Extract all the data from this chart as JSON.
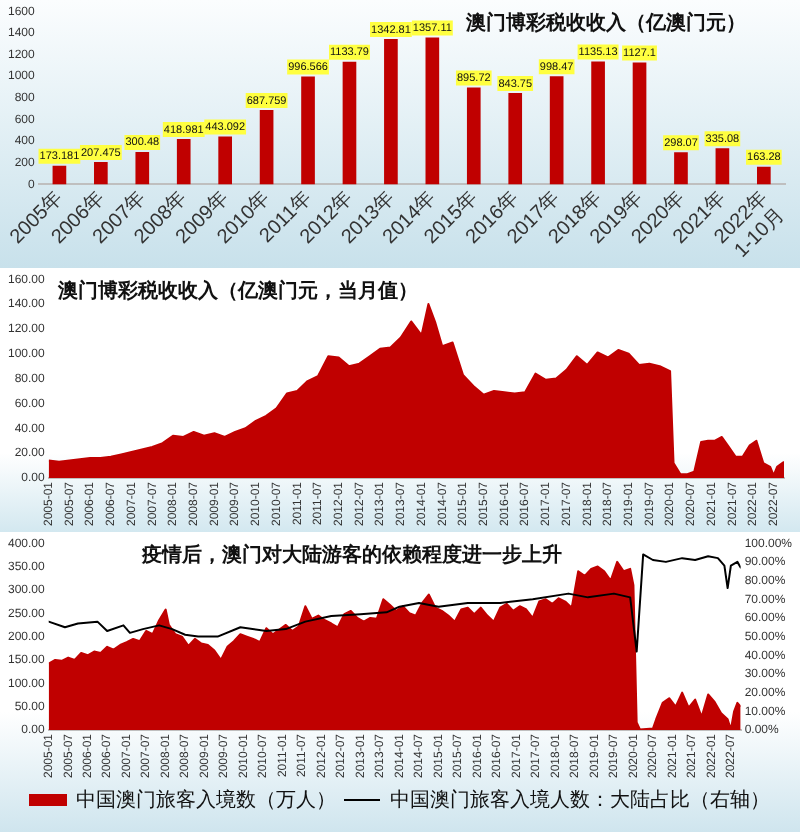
{
  "chart_data": [
    {
      "type": "bar",
      "title": "澳门博彩税收收入（亿澳门元）",
      "categories": [
        "2005年",
        "2006年",
        "2007年",
        "2008年",
        "2009年",
        "2010年",
        "2011年",
        "2012年",
        "2013年",
        "2014年",
        "2015年",
        "2016年",
        "2017年",
        "2018年",
        "2019年",
        "2020年",
        "2021年",
        "2022年1-10月"
      ],
      "values": [
        173.181,
        207.475,
        300.48,
        418.981,
        443.092,
        687.759,
        996.566,
        1133.79,
        1342.81,
        1357.11,
        895.72,
        843.75,
        998.47,
        1135.13,
        1127.1,
        298.07,
        335.08,
        163.28
      ],
      "color": "#c00000",
      "ylim": [
        0,
        1600
      ],
      "yticks": [
        0,
        200,
        400,
        600,
        800,
        1000,
        1200,
        1400,
        1600
      ],
      "data_labels": true
    },
    {
      "type": "area",
      "title": "澳门博彩税收收入（亿澳门元，当月值）",
      "x": [
        "2005-01",
        "2005-04",
        "2005-07",
        "2005-10",
        "2006-01",
        "2006-04",
        "2006-07",
        "2006-10",
        "2007-01",
        "2007-04",
        "2007-07",
        "2007-10",
        "2008-01",
        "2008-04",
        "2008-07",
        "2008-10",
        "2009-01",
        "2009-04",
        "2009-07",
        "2009-10",
        "2010-01",
        "2010-04",
        "2010-07",
        "2010-10",
        "2011-01",
        "2011-04",
        "2011-07",
        "2011-10",
        "2012-01",
        "2012-04",
        "2012-07",
        "2012-10",
        "2013-01",
        "2013-04",
        "2013-07",
        "2013-10",
        "2014-01",
        "2014-03",
        "2014-05",
        "2014-07",
        "2014-10",
        "2015-01",
        "2015-04",
        "2015-07",
        "2015-10",
        "2016-01",
        "2016-04",
        "2016-07",
        "2016-10",
        "2017-01",
        "2017-04",
        "2017-07",
        "2017-10",
        "2018-01",
        "2018-04",
        "2018-07",
        "2018-10",
        "2019-01",
        "2019-04",
        "2019-07",
        "2019-10",
        "2020-01",
        "2020-02",
        "2020-04",
        "2020-06",
        "2020-08",
        "2020-10",
        "2020-12",
        "2021-02",
        "2021-04",
        "2021-06",
        "2021-08",
        "2021-10",
        "2021-12",
        "2022-02",
        "2022-04",
        "2022-06",
        "2022-07",
        "2022-08",
        "2022-10"
      ],
      "values": [
        14,
        13,
        14,
        15,
        16,
        16,
        17,
        19,
        21,
        23,
        25,
        28,
        34,
        33,
        37,
        34,
        36,
        33,
        37,
        40,
        46,
        50,
        56,
        68,
        70,
        78,
        82,
        98,
        97,
        90,
        92,
        98,
        104,
        105,
        113,
        126,
        115,
        140,
        125,
        106,
        109,
        83,
        74,
        67,
        70,
        69,
        68,
        69,
        84,
        79,
        80,
        87,
        98,
        91,
        101,
        97,
        103,
        100,
        91,
        92,
        90,
        86,
        12,
        3,
        3,
        5,
        29,
        30,
        30,
        33,
        25,
        17,
        17,
        26,
        30,
        12,
        9,
        2,
        9,
        13
      ],
      "color": "#c00000",
      "xlim": [
        "2005-01",
        "2022-10"
      ],
      "xticks": [
        "2005-01",
        "2005-07",
        "2006-01",
        "2006-07",
        "2007-01",
        "2007-07",
        "2008-01",
        "2008-07",
        "2009-01",
        "2009-07",
        "2010-01",
        "2010-07",
        "2011-01",
        "2011-07",
        "2012-01",
        "2012-07",
        "2013-01",
        "2013-07",
        "2014-01",
        "2014-07",
        "2015-01",
        "2015-07",
        "2016-01",
        "2016-07",
        "2017-01",
        "2017-07",
        "2018-01",
        "2018-07",
        "2019-01",
        "2019-07",
        "2020-01",
        "2020-07",
        "2021-01",
        "2021-07",
        "2022-01",
        "2022-07"
      ],
      "ylim": [
        0,
        160
      ],
      "yticks": [
        {
          "value": 0,
          "label": "0.00"
        },
        {
          "value": 20,
          "label": "20.00"
        },
        {
          "value": 40,
          "label": "40.00"
        },
        {
          "value": 60,
          "label": "60.00"
        },
        {
          "value": 80,
          "label": "80.00"
        },
        {
          "value": 100,
          "label": "100.00"
        },
        {
          "value": 120,
          "label": "120.00"
        },
        {
          "value": 140,
          "label": "140.00"
        },
        {
          "value": 160,
          "label": "160.00"
        }
      ]
    },
    {
      "type": "area",
      "title": "疫情后，澳门对大陆游客的依赖程度进一步上升",
      "series": [
        {
          "name": "中国澳门旅客入境数（万人）",
          "color": "#c00000",
          "x": [
            "2005-01",
            "2005-03",
            "2005-05",
            "2005-07",
            "2005-09",
            "2005-11",
            "2006-01",
            "2006-03",
            "2006-05",
            "2006-07",
            "2006-09",
            "2006-11",
            "2007-01",
            "2007-03",
            "2007-05",
            "2007-07",
            "2007-09",
            "2007-11",
            "2008-01",
            "2008-02",
            "2008-04",
            "2008-06",
            "2008-08",
            "2008-10",
            "2008-12",
            "2009-02",
            "2009-04",
            "2009-06",
            "2009-08",
            "2009-10",
            "2009-12",
            "2010-02",
            "2010-04",
            "2010-06",
            "2010-08",
            "2010-10",
            "2010-12",
            "2011-02",
            "2011-04",
            "2011-06",
            "2011-08",
            "2011-10",
            "2011-12",
            "2012-02",
            "2012-04",
            "2012-06",
            "2012-08",
            "2012-10",
            "2012-12",
            "2013-02",
            "2013-04",
            "2013-06",
            "2013-08",
            "2013-10",
            "2013-12",
            "2014-02",
            "2014-04",
            "2014-06",
            "2014-08",
            "2014-10",
            "2014-12",
            "2015-02",
            "2015-04",
            "2015-06",
            "2015-08",
            "2015-10",
            "2015-12",
            "2016-02",
            "2016-04",
            "2016-06",
            "2016-08",
            "2016-10",
            "2016-12",
            "2017-02",
            "2017-04",
            "2017-06",
            "2017-08",
            "2017-10",
            "2017-12",
            "2018-02",
            "2018-04",
            "2018-06",
            "2018-08",
            "2018-10",
            "2018-12",
            "2019-02",
            "2019-04",
            "2019-06",
            "2019-08",
            "2019-10",
            "2019-12",
            "2020-01",
            "2020-02",
            "2020-03",
            "2020-05",
            "2020-07",
            "2020-08",
            "2020-10",
            "2020-12",
            "2021-02",
            "2021-04",
            "2021-06",
            "2021-08",
            "2021-10",
            "2021-12",
            "2022-02",
            "2022-04",
            "2022-06",
            "2022-07",
            "2022-08",
            "2022-09",
            "2022-10"
          ],
          "values": [
            142,
            150,
            148,
            155,
            150,
            165,
            160,
            168,
            165,
            178,
            172,
            182,
            188,
            195,
            190,
            212,
            205,
            235,
            258,
            225,
            205,
            200,
            180,
            195,
            185,
            182,
            170,
            150,
            178,
            190,
            205,
            200,
            195,
            188,
            218,
            205,
            215,
            225,
            212,
            222,
            265,
            238,
            245,
            235,
            228,
            220,
            248,
            255,
            240,
            232,
            240,
            238,
            280,
            268,
            255,
            265,
            250,
            245,
            272,
            290,
            262,
            255,
            245,
            232,
            258,
            262,
            248,
            262,
            245,
            232,
            262,
            270,
            255,
            265,
            258,
            240,
            275,
            280,
            270,
            282,
            275,
            262,
            340,
            330,
            345,
            350,
            340,
            320,
            360,
            340,
            345,
            310,
            16,
            1,
            2,
            3,
            23,
            58,
            68,
            50,
            80,
            48,
            65,
            28,
            76,
            60,
            36,
            23,
            1,
            40,
            58,
            50
          ]
        },
        {
          "name": "中国澳门旅客入境人数：大陆占比（右轴）",
          "type": "line",
          "color": "#000000",
          "axis": "y2",
          "x": [
            "2005-01",
            "2005-06",
            "2005-10",
            "2006-04",
            "2006-07",
            "2006-12",
            "2007-02",
            "2007-06",
            "2007-11",
            "2008-03",
            "2008-07",
            "2008-11",
            "2009-05",
            "2009-12",
            "2010-08",
            "2011-02",
            "2011-08",
            "2012-04",
            "2013-01",
            "2013-09",
            "2014-01",
            "2014-07",
            "2015-01",
            "2015-10",
            "2016-08",
            "2017-06",
            "2018-05",
            "2018-11",
            "2019-07",
            "2019-12",
            "2020-02",
            "2020-04",
            "2020-07",
            "2020-11",
            "2021-04",
            "2021-08",
            "2021-12",
            "2022-03",
            "2022-05",
            "2022-06",
            "2022-07",
            "2022-09",
            "2022-10"
          ],
          "values": [
            58,
            55,
            57,
            58,
            53,
            56,
            52,
            54,
            56,
            54,
            51,
            50,
            50,
            55,
            53,
            54,
            58,
            61,
            62,
            63,
            66,
            68,
            66,
            68,
            68,
            70,
            73,
            71,
            73,
            71,
            42,
            94,
            91,
            90,
            92,
            91,
            93,
            92,
            88,
            76,
            88,
            90,
            87
          ]
        }
      ],
      "xlim": [
        "2005-01",
        "2022-10"
      ],
      "xticks": [
        "2005-01",
        "2005-07",
        "2006-01",
        "2006-07",
        "2007-01",
        "2007-07",
        "2008-01",
        "2008-07",
        "2009-01",
        "2009-07",
        "2010-01",
        "2010-07",
        "2011-01",
        "2011-07",
        "2012-01",
        "2012-07",
        "2013-01",
        "2013-07",
        "2014-01",
        "2014-07",
        "2015-01",
        "2015-07",
        "2016-01",
        "2016-07",
        "2017-01",
        "2017-07",
        "2018-01",
        "2018-07",
        "2019-01",
        "2019-07",
        "2020-01",
        "2020-07",
        "2021-01",
        "2021-07",
        "2022-01",
        "2022-07"
      ],
      "ylim": [
        0,
        400
      ],
      "yticks": [
        {
          "value": 0,
          "label": "0.00"
        },
        {
          "value": 50,
          "label": "50.00"
        },
        {
          "value": 100,
          "label": "100.00"
        },
        {
          "value": 150,
          "label": "150.00"
        },
        {
          "value": 200,
          "label": "200.00"
        },
        {
          "value": 250,
          "label": "250.00"
        },
        {
          "value": 300,
          "label": "300.00"
        },
        {
          "value": 350,
          "label": "350.00"
        },
        {
          "value": 400,
          "label": "400.00"
        }
      ],
      "y2lim": [
        0,
        100
      ],
      "y2ticks": [
        {
          "value": 0,
          "label": "0.00%"
        },
        {
          "value": 10,
          "label": "10.00%"
        },
        {
          "value": 20,
          "label": "20.00%"
        },
        {
          "value": 30,
          "label": "30.00%"
        },
        {
          "value": 40,
          "label": "40.00%"
        },
        {
          "value": 50,
          "label": "50.00%"
        },
        {
          "value": 60,
          "label": "60.00%"
        },
        {
          "value": 70,
          "label": "70.00%"
        },
        {
          "value": 80,
          "label": "80.00%"
        },
        {
          "value": 90,
          "label": "90.00%"
        },
        {
          "value": 100,
          "label": "100.00%"
        }
      ],
      "legend": "bottom"
    }
  ]
}
